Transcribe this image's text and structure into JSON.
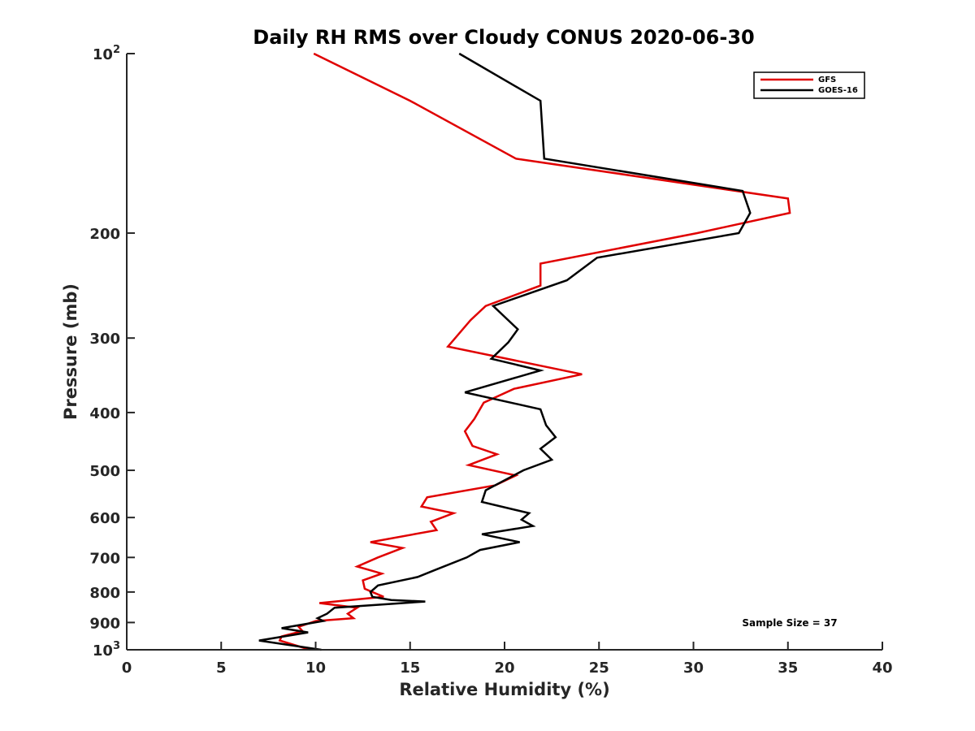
{
  "chart_data": {
    "type": "line",
    "title": "Daily RH RMS over Cloudy CONUS 2020-06-30",
    "xlabel": "Relative Humidity (%)",
    "ylabel": "Pressure (mb)",
    "xlim": [
      0,
      40
    ],
    "ylim": [
      100,
      1000
    ],
    "yscale": "log",
    "y_reversed": true,
    "x_ticks": [
      "0",
      "5",
      "10",
      "15",
      "20",
      "25",
      "30",
      "35",
      "40"
    ],
    "y_ticks": [
      {
        "value": 100,
        "label": "10",
        "sup": "2"
      },
      {
        "value": 200,
        "label": "200",
        "sup": ""
      },
      {
        "value": 300,
        "label": "300",
        "sup": ""
      },
      {
        "value": 400,
        "label": "400",
        "sup": ""
      },
      {
        "value": 500,
        "label": "500",
        "sup": ""
      },
      {
        "value": 600,
        "label": "600",
        "sup": ""
      },
      {
        "value": 700,
        "label": "700",
        "sup": ""
      },
      {
        "value": 800,
        "label": "800",
        "sup": ""
      },
      {
        "value": 900,
        "label": "900",
        "sup": ""
      },
      {
        "value": 1000,
        "label": "10",
        "sup": "3"
      }
    ],
    "legend_position": "top-right",
    "annotation": "Sample Size = 37",
    "series": [
      {
        "name": "GFS",
        "color": "#e00000",
        "points": [
          [
            9.9,
            100
          ],
          [
            15.0,
            120
          ],
          [
            20.6,
            150
          ],
          [
            35.0,
            175
          ],
          [
            35.1,
            185
          ],
          [
            30.2,
            200
          ],
          [
            21.9,
            225
          ],
          [
            21.9,
            245
          ],
          [
            19.0,
            265
          ],
          [
            18.2,
            280
          ],
          [
            17.0,
            310
          ],
          [
            24.1,
            345
          ],
          [
            20.5,
            365
          ],
          [
            18.9,
            385
          ],
          [
            18.4,
            410
          ],
          [
            17.9,
            430
          ],
          [
            18.3,
            455
          ],
          [
            19.6,
            470
          ],
          [
            18.1,
            490
          ],
          [
            20.6,
            510
          ],
          [
            19.5,
            530
          ],
          [
            15.9,
            555
          ],
          [
            15.6,
            575
          ],
          [
            17.3,
            590
          ],
          [
            16.1,
            610
          ],
          [
            16.4,
            630
          ],
          [
            12.9,
            660
          ],
          [
            14.6,
            675
          ],
          [
            13.3,
            700
          ],
          [
            12.2,
            725
          ],
          [
            13.5,
            745
          ],
          [
            12.5,
            765
          ],
          [
            12.6,
            790
          ],
          [
            13.6,
            815
          ],
          [
            10.2,
            835
          ],
          [
            12.2,
            850
          ],
          [
            11.7,
            870
          ],
          [
            12.0,
            885
          ],
          [
            10.0,
            895
          ],
          [
            9.1,
            915
          ],
          [
            9.3,
            930
          ],
          [
            8.2,
            950
          ],
          [
            8.1,
            965
          ],
          [
            9.7,
            1000
          ]
        ]
      },
      {
        "name": "GOES-16",
        "color": "#000000",
        "points": [
          [
            17.6,
            100
          ],
          [
            21.9,
            120
          ],
          [
            22.1,
            150
          ],
          [
            32.6,
            170
          ],
          [
            33.0,
            185
          ],
          [
            32.4,
            200
          ],
          [
            24.9,
            220
          ],
          [
            23.3,
            240
          ],
          [
            19.4,
            265
          ],
          [
            20.7,
            290
          ],
          [
            20.2,
            305
          ],
          [
            19.3,
            325
          ],
          [
            21.9,
            340
          ],
          [
            17.9,
            370
          ],
          [
            21.9,
            395
          ],
          [
            22.2,
            420
          ],
          [
            22.7,
            440
          ],
          [
            21.9,
            460
          ],
          [
            22.5,
            480
          ],
          [
            21.0,
            500
          ],
          [
            19.0,
            540
          ],
          [
            18.8,
            565
          ],
          [
            21.3,
            590
          ],
          [
            20.9,
            605
          ],
          [
            21.5,
            620
          ],
          [
            18.8,
            640
          ],
          [
            20.8,
            660
          ],
          [
            18.7,
            680
          ],
          [
            18.0,
            700
          ],
          [
            16.3,
            735
          ],
          [
            15.4,
            755
          ],
          [
            13.3,
            780
          ],
          [
            12.9,
            800
          ],
          [
            13.0,
            815
          ],
          [
            14.0,
            825
          ],
          [
            15.8,
            830
          ],
          [
            11.0,
            850
          ],
          [
            10.6,
            870
          ],
          [
            10.1,
            885
          ],
          [
            10.4,
            895
          ],
          [
            8.2,
            920
          ],
          [
            9.6,
            935
          ],
          [
            7.0,
            965
          ],
          [
            10.3,
            1000
          ]
        ]
      }
    ]
  }
}
